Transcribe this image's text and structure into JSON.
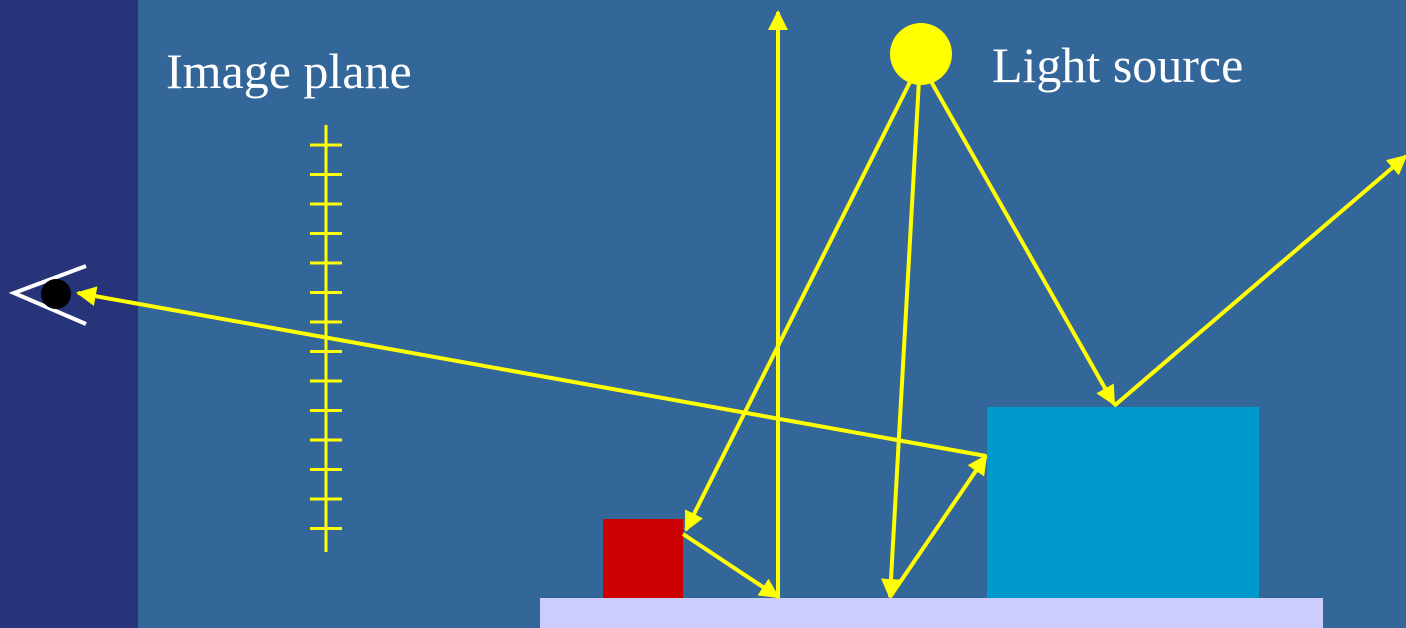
{
  "labels": {
    "image_plane": "Image plane",
    "light_source": "Light source"
  },
  "colors": {
    "background": "#336699",
    "sidebar": "#27347a",
    "ray": "#ffff00",
    "light": "#ffff00",
    "red_box": "#cc0000",
    "blue_box": "#0099cc",
    "floor": "#ccccff",
    "eye_outline": "#ffffff",
    "pupil": "#000000"
  },
  "icons": {
    "eye": "eye-icon",
    "light": "light-source-icon"
  }
}
